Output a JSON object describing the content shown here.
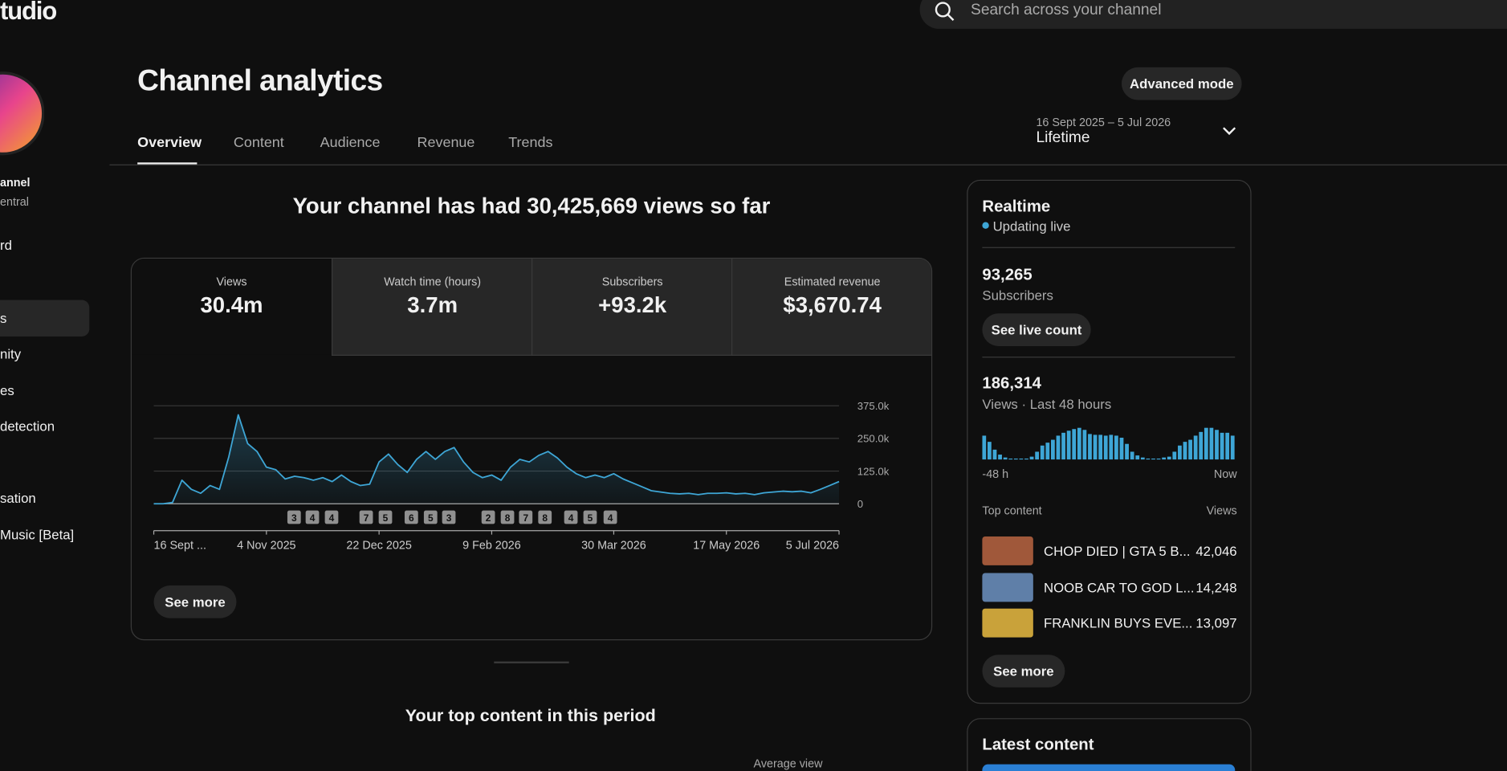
{
  "header": {
    "logo_text": "tudio",
    "search_placeholder": "Search across your channel"
  },
  "sidebar": {
    "channel_name": "annel",
    "channel_sub": "entral",
    "items": [
      "rd",
      "s",
      "nity",
      "es",
      "detection",
      "sation",
      "Music [Beta]"
    ]
  },
  "page": {
    "title": "Channel analytics",
    "advanced_mode": "Advanced mode",
    "tabs": [
      "Overview",
      "Content",
      "Audience",
      "Revenue",
      "Trends"
    ],
    "date_range": "16 Sept 2025 – 5 Jul 2026",
    "period": "Lifetime"
  },
  "summary": "Your channel has had 30,425,669 views so far",
  "metrics": [
    {
      "label": "Views",
      "value": "30.4m"
    },
    {
      "label": "Watch time (hours)",
      "value": "3.7m"
    },
    {
      "label": "Subscribers",
      "value": "+93.2k"
    },
    {
      "label": "Estimated revenue",
      "value": "$3,670.74"
    }
  ],
  "views_chart": {
    "type": "line",
    "color": "#3ea6d6",
    "categories": [
      "16 Sept ...",
      null,
      null,
      null,
      null,
      null,
      null,
      null,
      null,
      null,
      null,
      null,
      "4 Nov 2025",
      null,
      null,
      null,
      null,
      null,
      null,
      null,
      null,
      null,
      null,
      null,
      "22 Dec 2025",
      null,
      null,
      null,
      null,
      null,
      null,
      null,
      null,
      null,
      null,
      null,
      "9 Feb 2026",
      null,
      null,
      null,
      null,
      null,
      null,
      null,
      null,
      null,
      null,
      null,
      null,
      "30 Mar 2026",
      null,
      null,
      null,
      null,
      null,
      null,
      null,
      null,
      null,
      null,
      null,
      "17 May 2026",
      null,
      null,
      null,
      null,
      null,
      null,
      null,
      null,
      null,
      null,
      null,
      "5 Jul 2026"
    ],
    "values": [
      0,
      0,
      5000,
      90000,
      55000,
      40000,
      70000,
      55000,
      180000,
      340000,
      230000,
      200000,
      140000,
      130000,
      95000,
      105000,
      100000,
      90000,
      100000,
      85000,
      110000,
      85000,
      70000,
      75000,
      160000,
      190000,
      150000,
      120000,
      170000,
      200000,
      170000,
      200000,
      215000,
      160000,
      120000,
      100000,
      110000,
      90000,
      140000,
      170000,
      160000,
      185000,
      200000,
      175000,
      140000,
      115000,
      100000,
      110000,
      100000,
      115000,
      95000,
      80000,
      65000,
      50000,
      45000,
      40000,
      38000,
      40000,
      35000,
      40000,
      40000,
      42000,
      38000,
      40000,
      35000,
      42000,
      45000,
      48000,
      46000,
      48000,
      42000,
      55000,
      70000,
      85000
    ],
    "ylim": [
      0,
      375000
    ],
    "yticks": [
      0,
      {
        "value": 125000,
        "label": "125.0k"
      },
      {
        "value": 250000,
        "label": "250.0k"
      },
      {
        "value": 375000,
        "label": "375.0k"
      }
    ],
    "grid": true,
    "annotations": [
      "3",
      "4",
      "4",
      "7",
      "5",
      "6",
      "5",
      "3",
      "2",
      "8",
      "7",
      "8",
      "4",
      "5",
      "4"
    ]
  },
  "see_more": "See more",
  "top_content_title": "Your top content in this period",
  "table_header": "Average view",
  "realtime": {
    "title": "Realtime",
    "status": "Updating live",
    "subscribers": "93,265",
    "subscribers_label": "Subscribers",
    "live_count_button": "See live count",
    "views": "186,314",
    "views_label": "Views · Last 48 hours",
    "chart": {
      "type": "bar",
      "color": "#3ea6d6",
      "values": [
        5800,
        4300,
        2400,
        1200,
        500,
        240,
        240,
        240,
        240,
        700,
        1900,
        3400,
        4100,
        4800,
        5800,
        6500,
        7000,
        7400,
        7700,
        7200,
        6200,
        6000,
        6000,
        5800,
        6000,
        5800,
        5300,
        3800,
        1900,
        1000,
        500,
        240,
        240,
        240,
        500,
        700,
        1900,
        3400,
        4300,
        4800,
        5800,
        6700,
        7700,
        7700,
        7200,
        6500,
        6500,
        5800
      ],
      "x_start": "-48 h",
      "x_end": "Now"
    },
    "top_content_label": "Top content",
    "views_column": "Views",
    "items": [
      {
        "title": "CHOP DIED | GTA 5 B...",
        "views": "42,046"
      },
      {
        "title": "NOOB CAR TO GOD L...",
        "views": "14,248"
      },
      {
        "title": "FRANKLIN BUYS EVE...",
        "views": "13,097"
      }
    ],
    "see_more": "See more"
  },
  "latest_content": {
    "title": "Latest content"
  }
}
